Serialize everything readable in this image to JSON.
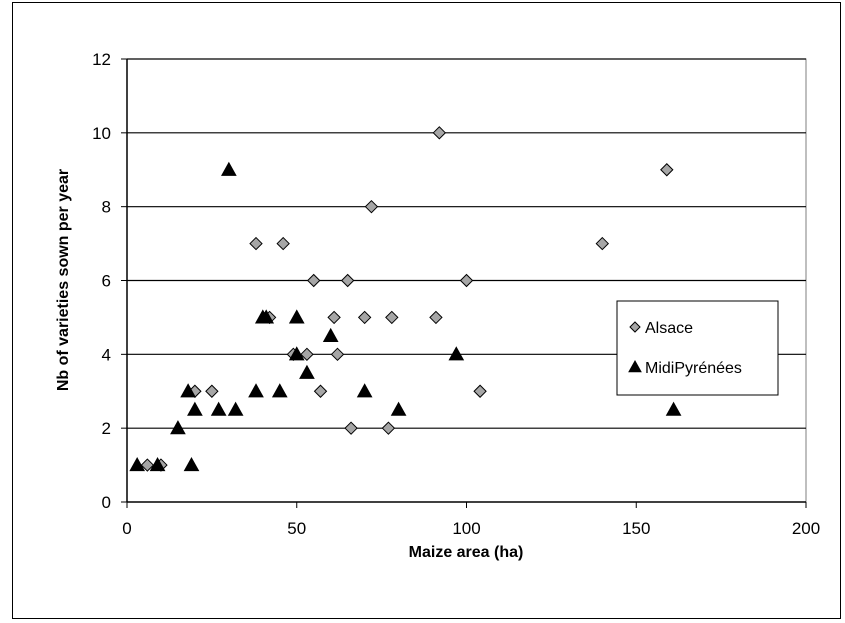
{
  "chart_data": {
    "type": "scatter",
    "title": "",
    "xlabel": "Maize area (ha)",
    "ylabel": "Nb of varieties sown per year",
    "xlim": [
      0,
      200
    ],
    "ylim": [
      0,
      12
    ],
    "xticks": [
      0,
      50,
      100,
      150,
      200
    ],
    "yticks": [
      0,
      2,
      4,
      6,
      8,
      10,
      12
    ],
    "grid": "horizontal",
    "legend_position": "right",
    "series": [
      {
        "name": "Alsace",
        "marker": "diamond",
        "color": "#a6a6a6",
        "points": [
          [
            6,
            1
          ],
          [
            10,
            1
          ],
          [
            20,
            3
          ],
          [
            25,
            3
          ],
          [
            38,
            7
          ],
          [
            42,
            5
          ],
          [
            46,
            7
          ],
          [
            49,
            4
          ],
          [
            53,
            4
          ],
          [
            55,
            6
          ],
          [
            57,
            3
          ],
          [
            61,
            5
          ],
          [
            62,
            4
          ],
          [
            65,
            6
          ],
          [
            66,
            2
          ],
          [
            70,
            5
          ],
          [
            72,
            8
          ],
          [
            77,
            2
          ],
          [
            78,
            5
          ],
          [
            91,
            5
          ],
          [
            92,
            10
          ],
          [
            100,
            6
          ],
          [
            104,
            3
          ],
          [
            140,
            7
          ],
          [
            159,
            9
          ]
        ]
      },
      {
        "name": "MidiPyrénées",
        "marker": "triangle",
        "color": "#000000",
        "points": [
          [
            3,
            1
          ],
          [
            9,
            1
          ],
          [
            15,
            2
          ],
          [
            18,
            3
          ],
          [
            19,
            1
          ],
          [
            20,
            2.5
          ],
          [
            27,
            2.5
          ],
          [
            30,
            9
          ],
          [
            32,
            2.5
          ],
          [
            38,
            3
          ],
          [
            40,
            5
          ],
          [
            41,
            5
          ],
          [
            45,
            3
          ],
          [
            50,
            4
          ],
          [
            50,
            5
          ],
          [
            53,
            3.5
          ],
          [
            60,
            4.5
          ],
          [
            70,
            3
          ],
          [
            80,
            2.5
          ],
          [
            97,
            4
          ],
          [
            161,
            2.5
          ]
        ]
      }
    ]
  }
}
